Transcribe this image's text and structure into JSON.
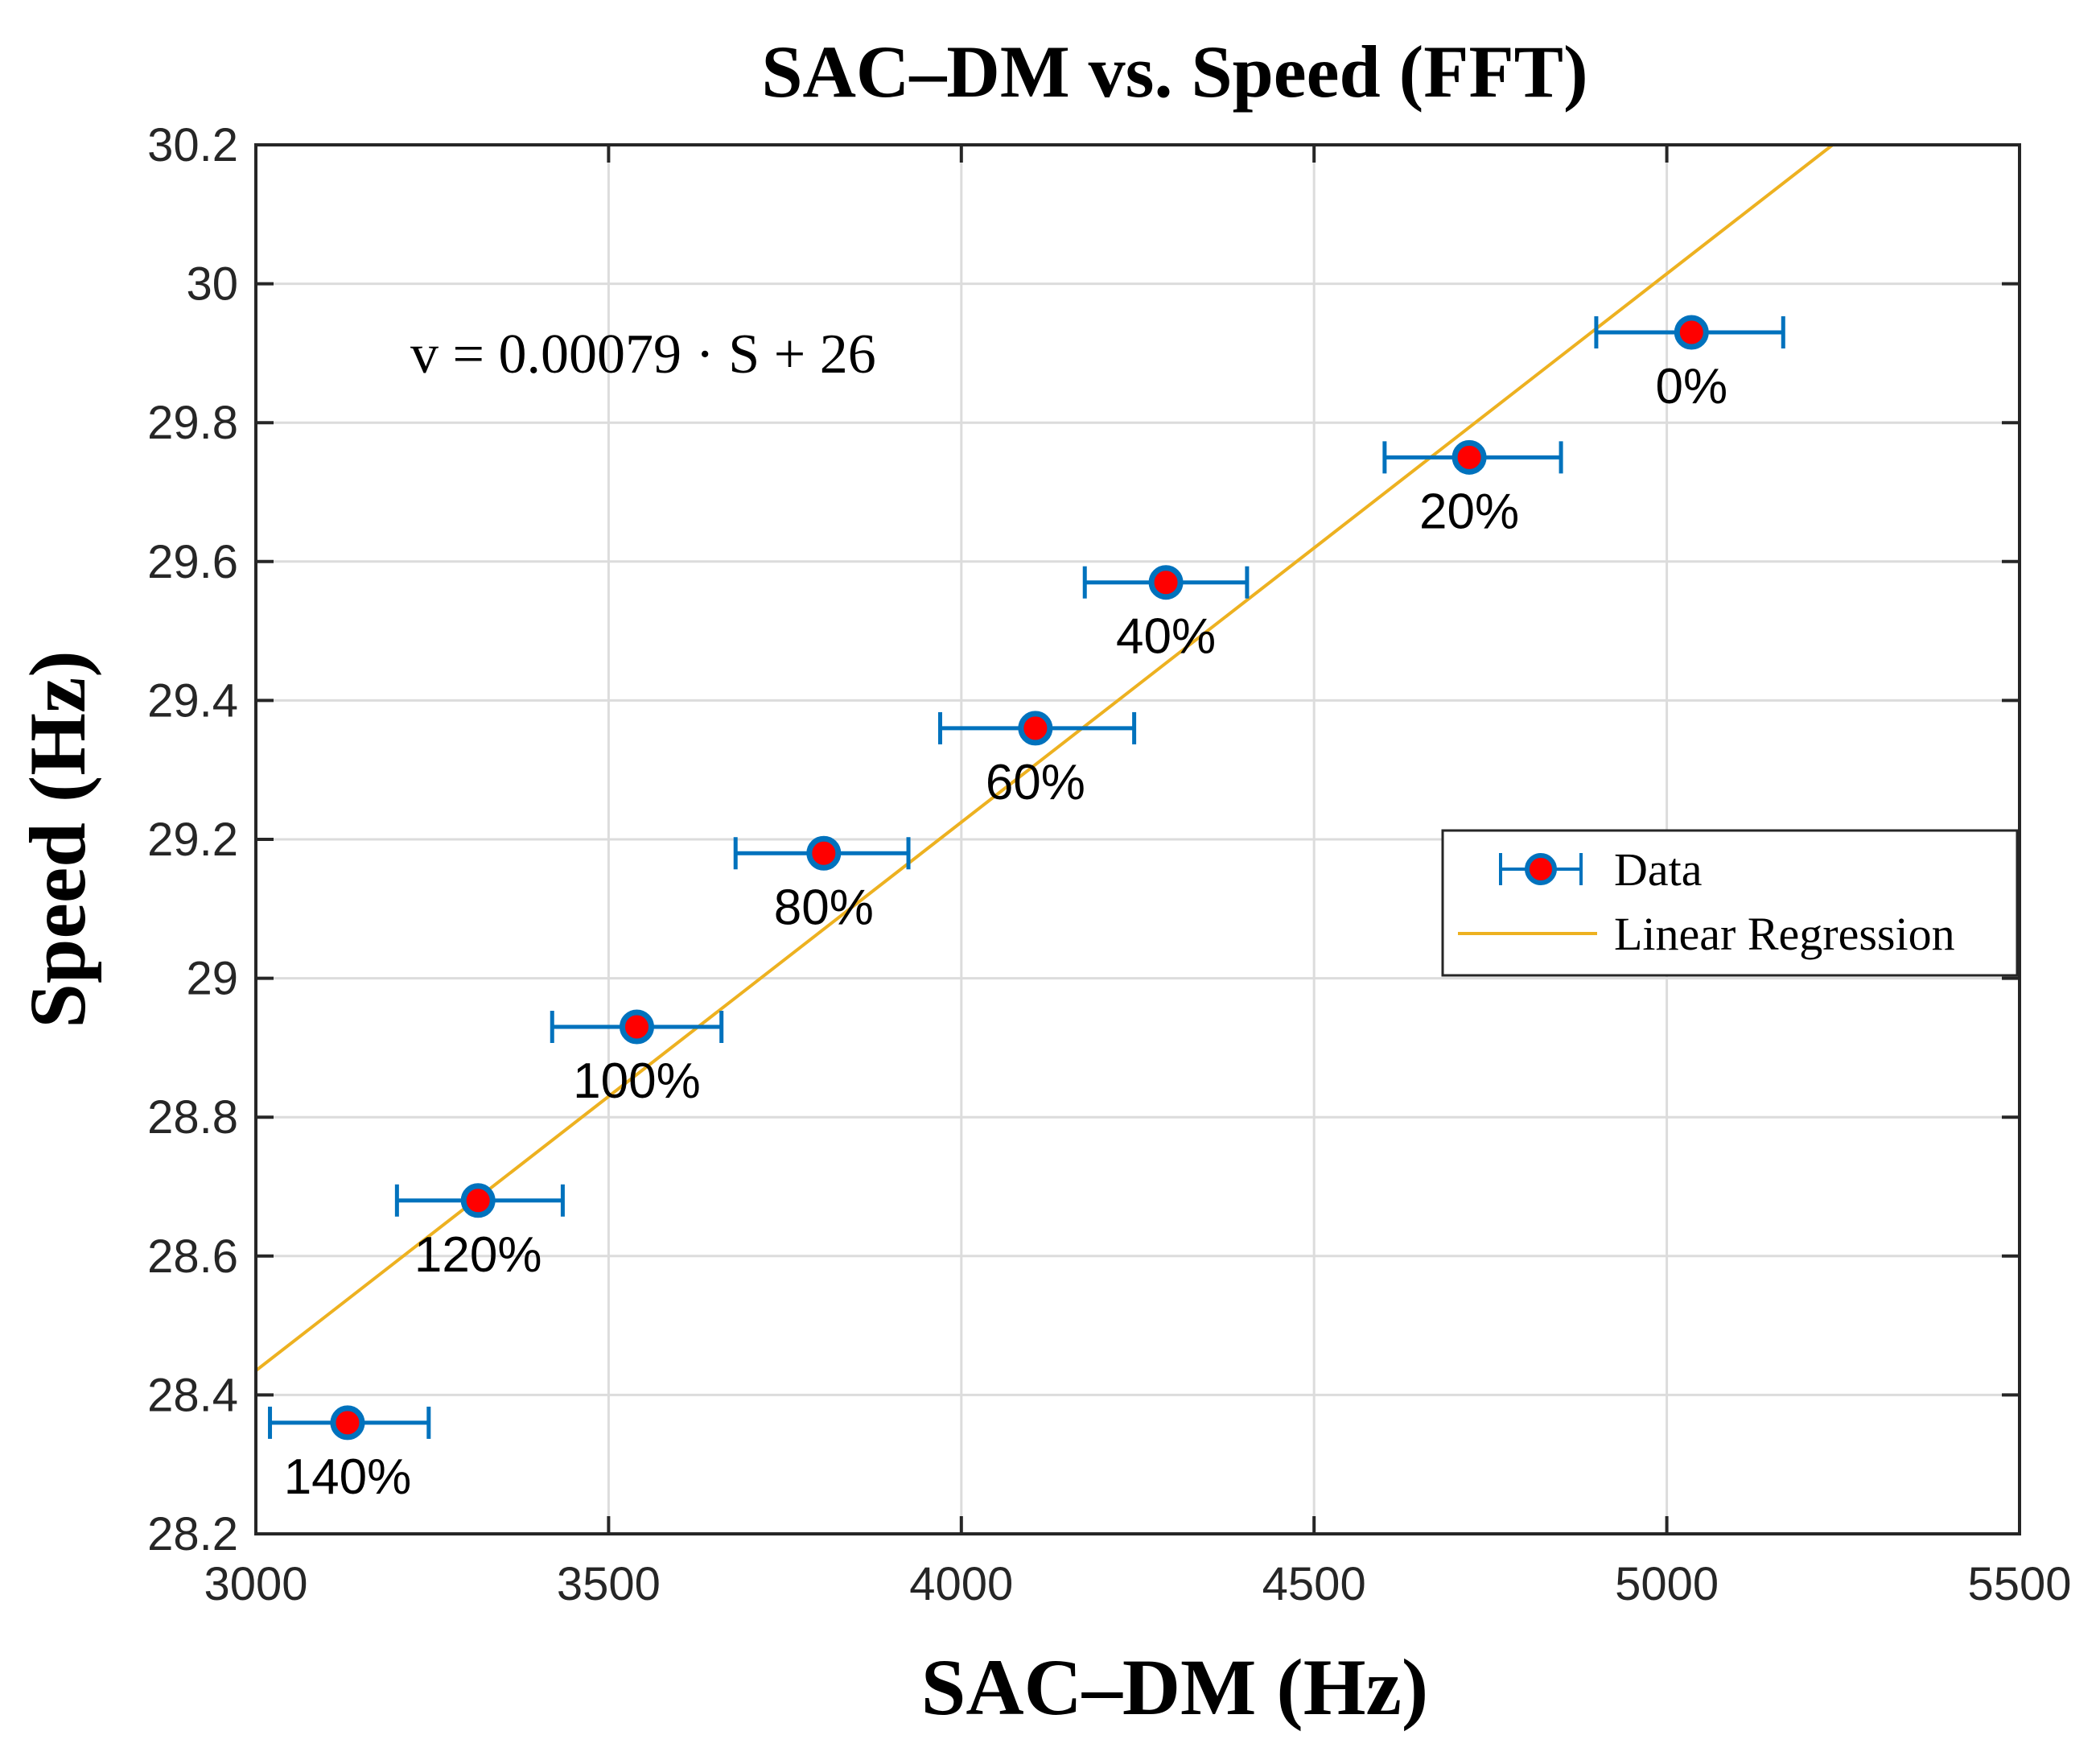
{
  "chart_data": {
    "type": "scatter",
    "title": "SAC–DM  vs.  Speed (FFT)",
    "xlabel": "SAC–DM (Hz)",
    "ylabel": "Speed (Hz)",
    "xlim": [
      3000,
      5500
    ],
    "ylim": [
      28.2,
      30.2
    ],
    "xticks": [
      3000,
      3500,
      4000,
      4500,
      5000,
      5500
    ],
    "yticks": [
      28.2,
      28.4,
      28.6,
      28.8,
      29,
      29.2,
      29.4,
      29.6,
      29.8,
      30,
      30.2
    ],
    "xtick_labels": [
      "3000",
      "3500",
      "4000",
      "4500",
      "5000",
      "5500"
    ],
    "ytick_labels": [
      "28.2",
      "28.4",
      "28.6",
      "28.8",
      "29",
      "29.2",
      "29.4",
      "29.6",
      "29.8",
      "30",
      "30.2"
    ],
    "grid": true,
    "series": [
      {
        "name": "Data",
        "points": [
          {
            "x": 5035,
            "y": 29.93,
            "xerr_low": 4900,
            "xerr_high": 5165,
            "label": "0%"
          },
          {
            "x": 4720,
            "y": 29.75,
            "xerr_low": 4600,
            "xerr_high": 4850,
            "label": "20%"
          },
          {
            "x": 4290,
            "y": 29.57,
            "xerr_low": 4175,
            "xerr_high": 4405,
            "label": "40%"
          },
          {
            "x": 4105,
            "y": 29.36,
            "xerr_low": 3970,
            "xerr_high": 4245,
            "label": "60%"
          },
          {
            "x": 3805,
            "y": 29.18,
            "xerr_low": 3680,
            "xerr_high": 3925,
            "label": "80%"
          },
          {
            "x": 3540,
            "y": 28.93,
            "xerr_low": 3420,
            "xerr_high": 3660,
            "label": "100%"
          },
          {
            "x": 3315,
            "y": 28.68,
            "xerr_low": 3200,
            "xerr_high": 3435,
            "label": "120%"
          },
          {
            "x": 3130,
            "y": 28.36,
            "xerr_low": 3020,
            "xerr_high": 3245,
            "label": "140%"
          }
        ]
      },
      {
        "name": "Linear Regression",
        "x": [
          3000,
          5235
        ],
        "y": [
          28.435,
          30.2
        ]
      }
    ],
    "annotation": "v = 0.00079 · S + 26",
    "legend": {
      "placement": "right",
      "entries": [
        "Data",
        "Linear Regression"
      ]
    },
    "colors": {
      "marker_fill": "#ff0000",
      "marker_edge": "#0072bd",
      "errorbar": "#0072bd",
      "regression": "#edb120",
      "grid": "#dcdcdc",
      "axes": "#262626"
    }
  }
}
